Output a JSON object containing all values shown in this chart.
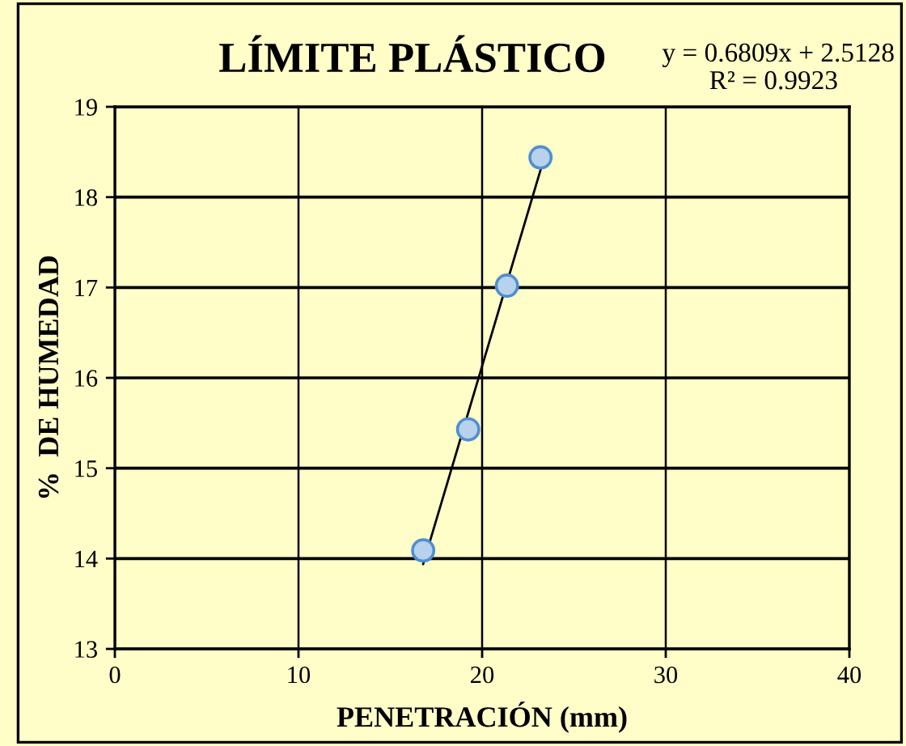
{
  "chart_data": {
    "type": "scatter",
    "title": "LÍMITE PLÁSTICO",
    "xlabel": "PENETRACIÓN (mm)",
    "ylabel": "%  DE HUMEDAD",
    "annotations": [
      "y = 0.6809x + 2.5128",
      "R² = 0.9923"
    ],
    "xlim": [
      0,
      40
    ],
    "xticks": [
      0,
      10,
      20,
      30,
      40
    ],
    "ylim": [
      13,
      19
    ],
    "yticks": [
      13,
      14,
      15,
      16,
      17,
      18,
      19
    ],
    "grid": true,
    "series": [
      {
        "color": "#b8d2ee",
        "marker": "circle",
        "x": [
          16.79,
          19.24,
          21.35,
          23.18
        ],
        "values": [
          14.09,
          15.43,
          17.02,
          18.44
        ]
      },
      {
        "type": "line",
        "color": "#000000",
        "x": [
          16.79,
          23.18
        ],
        "values": [
          13.94,
          18.3
        ],
        "line_style": "solid"
      }
    ]
  }
}
